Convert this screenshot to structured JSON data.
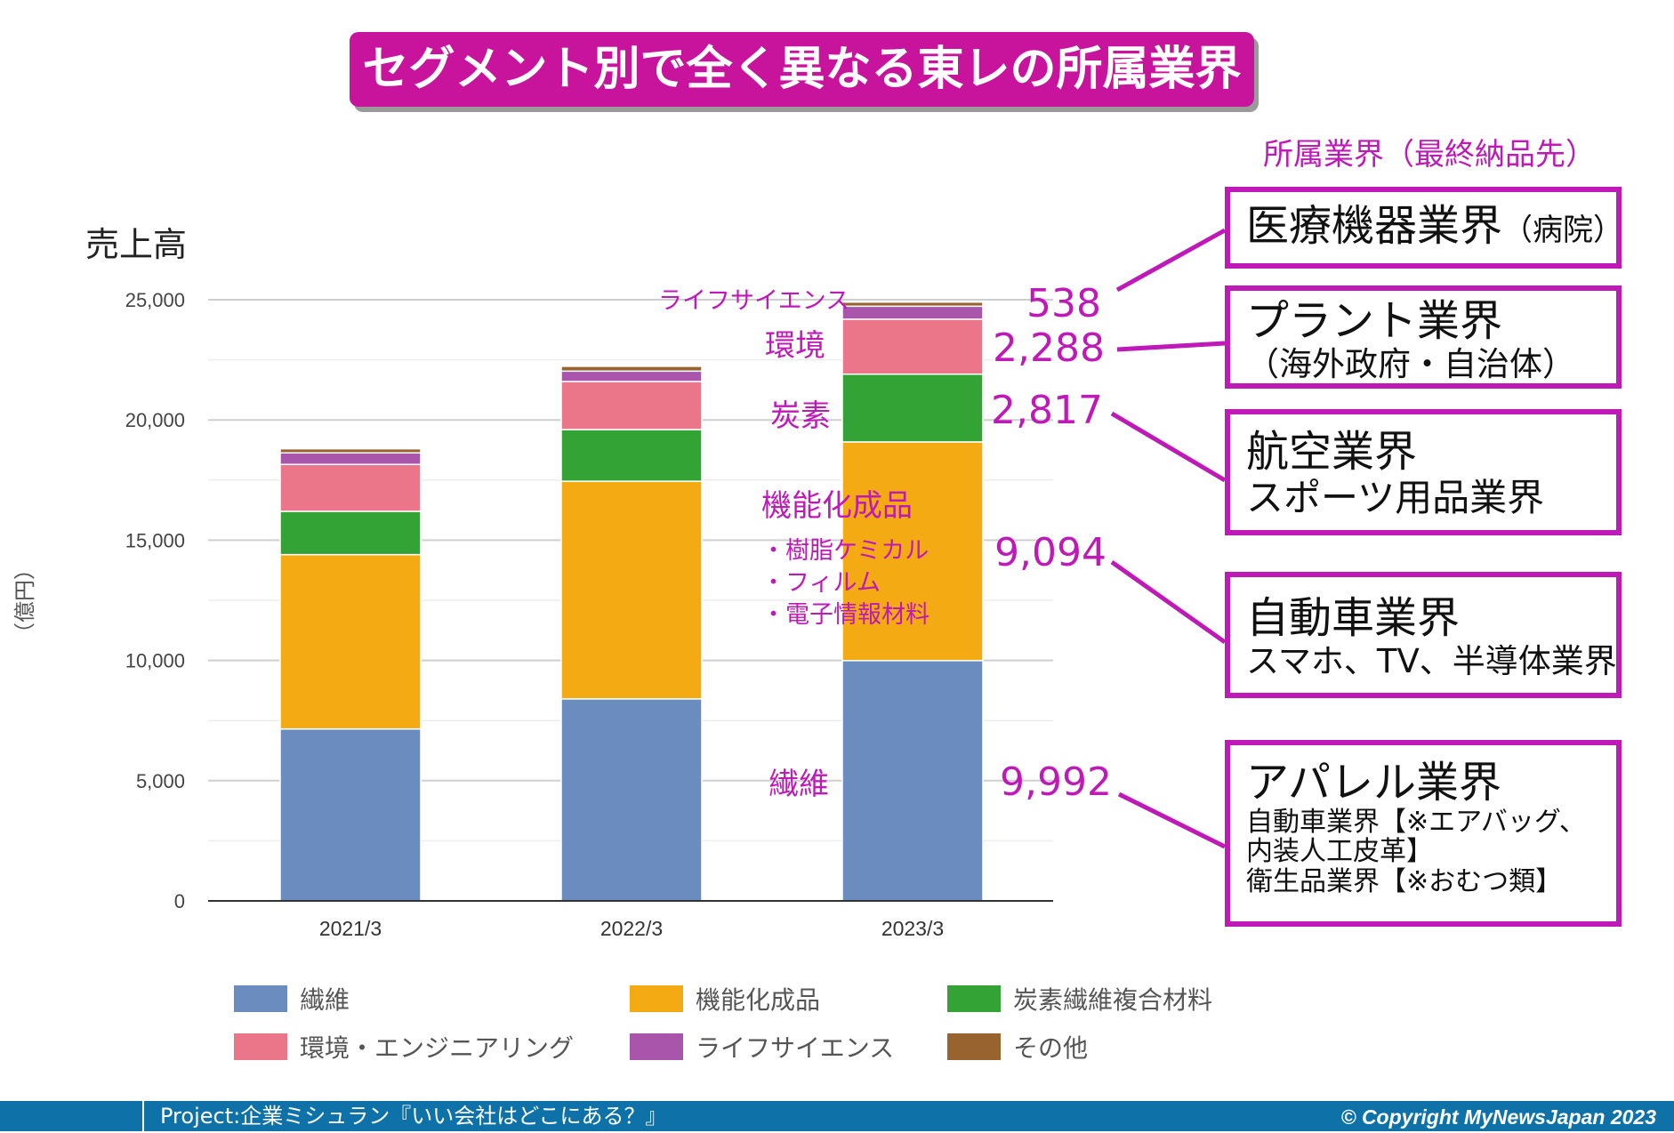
{
  "title": "セグメント別で全く異なる東レの所属業界",
  "industry_header": "所属業界（最終納品先）",
  "chart_data": {
    "type": "bar",
    "stacked": true,
    "ylabel_top": "売上高",
    "yunit": "（億円）",
    "categories": [
      "2021/3",
      "2022/3",
      "2023/3"
    ],
    "ylim": [
      0,
      25000
    ],
    "yticks": [
      "0",
      "5,000",
      "10,000",
      "15,000",
      "20,000",
      "25,000"
    ],
    "yticks_values": [
      0,
      5000,
      10000,
      15000,
      20000,
      25000
    ],
    "grid": true,
    "legend_position": "bottom",
    "series": [
      {
        "name": "繊維",
        "color": "#6a8cbf",
        "values": [
          7150,
          8400,
          9992
        ]
      },
      {
        "name": "機能化成品",
        "color": "#f4aa12",
        "values": [
          7250,
          9050,
          9094
        ]
      },
      {
        "name": "炭素繊維複合材料",
        "color": "#33a336",
        "values": [
          1800,
          2150,
          2817
        ]
      },
      {
        "name": "環境・エンジニアリング",
        "color": "#ec7689",
        "values": [
          1950,
          2000,
          2288
        ]
      },
      {
        "name": "ライフサイエンス",
        "color": "#a855ab",
        "values": [
          480,
          430,
          538
        ]
      },
      {
        "name": "その他",
        "color": "#99632f",
        "values": [
          170,
          200,
          171
        ]
      }
    ]
  },
  "annotations": {
    "segments": {
      "life_science": "ライフサイエンス",
      "environment": "環境",
      "carbon": "炭素",
      "functional": "機能化成品",
      "functional_items": [
        "・樹脂ケミカル",
        "・フィルム",
        "・電子情報材料"
      ],
      "fiber": "繊維"
    },
    "values": {
      "life_science": "538",
      "environment": "2,288",
      "carbon": "2,817",
      "functional": "9,094",
      "fiber": "9,992"
    }
  },
  "industries": [
    {
      "main": "医療機器業界",
      "suffix": "（病院）"
    },
    {
      "main": "プラント業界",
      "sub": "（海外政府・自治体）"
    },
    {
      "main": "航空業界",
      "sub": "スポーツ用品業界"
    },
    {
      "main": "自動車業界",
      "sub": "スマホ、TV、半導体業界"
    },
    {
      "main": "アパレル業界",
      "details": [
        "自動車業界【※エアバッグ、",
        "内装人工皮革】",
        "衛生品業界【※おむつ類】"
      ]
    }
  ],
  "footer": {
    "project": "Project:企業ミシュラン『いい会社はどこにある？』",
    "copyright": "© Copyright  MyNewsJapan 2023"
  },
  "colors": {
    "accent": "#bf19b8",
    "title_bg": "#c8139c",
    "footer_bg": "#0e72a8"
  }
}
